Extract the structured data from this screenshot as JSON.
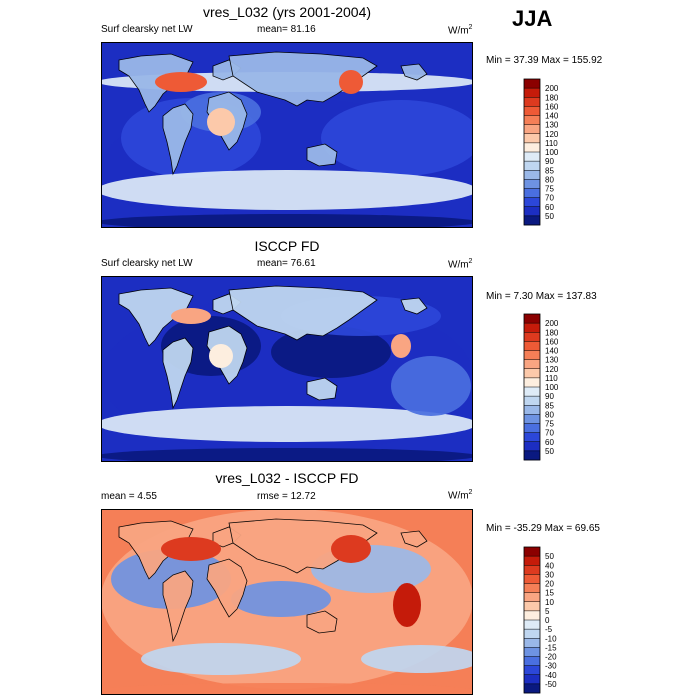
{
  "season": "JJA",
  "panels": [
    {
      "title": "vres_L032 (yrs 2001-2004)",
      "left_label": "Surf clearsky net LW",
      "stat_label": "mean=  81.16",
      "unit_main": "W/m",
      "unit_sup": "2",
      "minmax": "Min =  37.39 Max = 155.92",
      "kind": "abs"
    },
    {
      "title": "ISCCP FD",
      "left_label": "Surf clearsky net LW",
      "stat_label": "mean=  76.61",
      "unit_main": "W/m",
      "unit_sup": "2",
      "minmax": "Min =   7.30 Max = 137.83",
      "kind": "abs2"
    },
    {
      "title": "vres_L032 - ISCCP FD",
      "left_label": "mean =   4.55",
      "stat_label": "rmse =  12.72",
      "unit_main": "W/m",
      "unit_sup": "2",
      "minmax": "Min = -35.29 Max =  69.65",
      "kind": "diff"
    }
  ],
  "chart_data": [
    {
      "type": "heatmap",
      "title": "vres_L032 (yrs 2001-2004)",
      "variable": "Surf clearsky net LW",
      "units": "W/m2",
      "mean": 81.16,
      "min": 37.39,
      "max": 155.92,
      "colorbar_levels": [
        "200",
        "180",
        "160",
        "140",
        "130",
        "120",
        "110",
        "100",
        "90",
        "85",
        "80",
        "75",
        "70",
        "60",
        "50"
      ],
      "colorbar_colors": [
        "#8b0000",
        "#c51b0a",
        "#dd3a1f",
        "#ee5a36",
        "#f57f57",
        "#f9a582",
        "#fcc9aa",
        "#fdeedf",
        "#deebf7",
        "#bfd6f0",
        "#9ab8e8",
        "#6e93e2",
        "#4a6fe0",
        "#2c47d9",
        "#1c2ec2",
        "#0a1980"
      ]
    },
    {
      "type": "heatmap",
      "title": "ISCCP FD",
      "variable": "Surf clearsky net LW",
      "units": "W/m2",
      "mean": 76.61,
      "min": 7.3,
      "max": 137.83,
      "colorbar_levels": [
        "200",
        "180",
        "160",
        "140",
        "130",
        "120",
        "110",
        "100",
        "90",
        "85",
        "80",
        "75",
        "70",
        "60",
        "50"
      ],
      "colorbar_colors": [
        "#8b0000",
        "#c51b0a",
        "#dd3a1f",
        "#ee5a36",
        "#f57f57",
        "#f9a582",
        "#fcc9aa",
        "#fdeedf",
        "#deebf7",
        "#bfd6f0",
        "#9ab8e8",
        "#6e93e2",
        "#4a6fe0",
        "#2c47d9",
        "#1c2ec2",
        "#0a1980"
      ]
    },
    {
      "type": "heatmap",
      "title": "vres_L032 - ISCCP FD",
      "units": "W/m2",
      "mean": 4.55,
      "rmse": 12.72,
      "min": -35.29,
      "max": 69.65,
      "colorbar_levels": [
        "50",
        "40",
        "30",
        "20",
        "15",
        "10",
        "5",
        "0",
        "-5",
        "-10",
        "-15",
        "-20",
        "-30",
        "-40",
        "-50"
      ],
      "colorbar_colors": [
        "#8b0000",
        "#c51b0a",
        "#dd3a1f",
        "#ee5a36",
        "#f57f57",
        "#f9a582",
        "#fcc9aa",
        "#fdeedf",
        "#deebf7",
        "#bfd6f0",
        "#9ab8e8",
        "#6e93e2",
        "#4a6fe0",
        "#2c47d9",
        "#1c2ec2",
        "#0a1980"
      ]
    }
  ]
}
